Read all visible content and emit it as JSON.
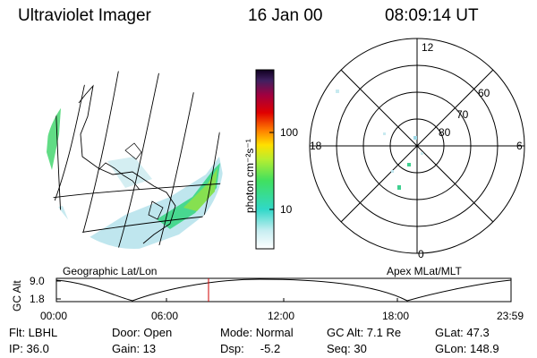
{
  "header": {
    "title": "Ultraviolet Imager",
    "date": "16 Jan 00",
    "time": "08:09:14 UT"
  },
  "geo_panel": {
    "label": "Geographic Lat/Lon"
  },
  "colorbar": {
    "unit_label": "photon cm⁻²s⁻¹",
    "ticks": [
      "100",
      "10"
    ]
  },
  "polar_panel": {
    "label": "Apex MLat/MLT",
    "mlt_labels": {
      "top": "12",
      "left": "18",
      "right": "6",
      "bottom": "0"
    },
    "lat_labels": [
      "60",
      "70",
      "80"
    ]
  },
  "altitude_plot": {
    "ylabel": "GC Alt",
    "yticks": [
      "9.0",
      "1.8"
    ],
    "xticks": [
      "00:00",
      "06:00",
      "12:00",
      "18:00",
      "23:59"
    ]
  },
  "info": {
    "row1": {
      "flt": "Flt: LBHL",
      "door": "Door: Open",
      "mode": "Mode: Normal",
      "gc_alt": "GC Alt: 7.1 Re",
      "glat": "GLat:  47.3"
    },
    "row2": {
      "ip": "IP: 36.0",
      "gain": "Gain: 13",
      "dsp": "Dsp:     -5.2",
      "seq": "Seq: 30",
      "glon": "GLon: 148.9"
    }
  },
  "colors": {
    "frame": "#000000",
    "marker": "#d00000",
    "aurora_low": "#9fd8e6",
    "aurora_mid": "#40d090",
    "aurora_high": "#7ee040"
  }
}
